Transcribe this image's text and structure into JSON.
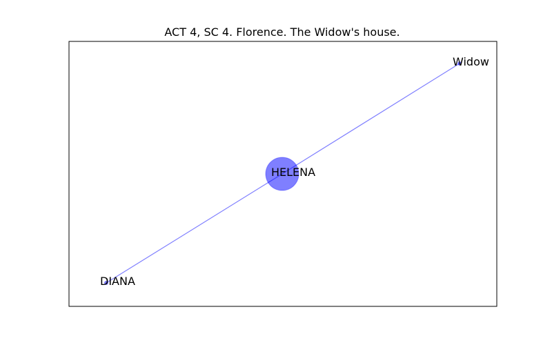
{
  "title": "ACT 4, SC 4. Florence. The Widow's house.",
  "graph": {
    "node_color": "#0000ff",
    "node_alpha": 0.5,
    "edge_color": "#0000ff",
    "frame_color": "#000000",
    "nodes": [
      {
        "id": "HELENA",
        "label": "HELENA",
        "size": "large"
      },
      {
        "id": "Widow",
        "label": "Widow",
        "size": "small"
      },
      {
        "id": "DIANA",
        "label": "DIANA",
        "size": "small"
      }
    ],
    "edges": [
      {
        "source": "Widow",
        "target": "HELENA"
      },
      {
        "source": "HELENA",
        "target": "DIANA"
      }
    ]
  }
}
